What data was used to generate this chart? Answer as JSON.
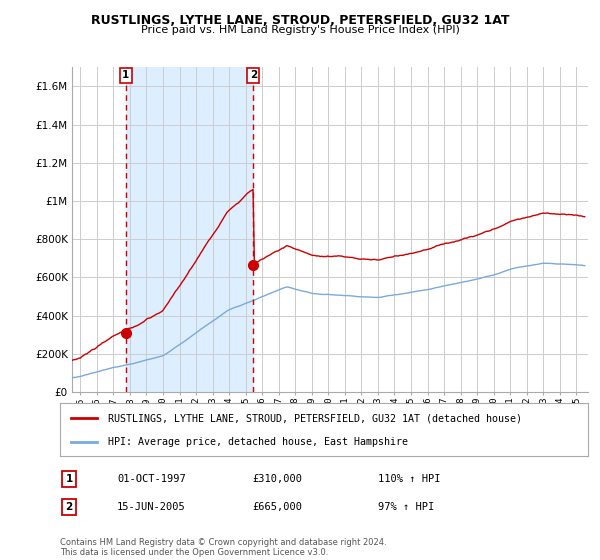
{
  "title": "RUSTLINGS, LYTHE LANE, STROUD, PETERSFIELD, GU32 1AT",
  "subtitle": "Price paid vs. HM Land Registry's House Price Index (HPI)",
  "legend_line1": "RUSTLINGS, LYTHE LANE, STROUD, PETERSFIELD, GU32 1AT (detached house)",
  "legend_line2": "HPI: Average price, detached house, East Hampshire",
  "sale1_label": "1",
  "sale1_date": "01-OCT-1997",
  "sale1_price": "£310,000",
  "sale1_hpi": "110% ↑ HPI",
  "sale2_label": "2",
  "sale2_date": "15-JUN-2005",
  "sale2_price": "£665,000",
  "sale2_hpi": "97% ↑ HPI",
  "footnote": "Contains HM Land Registry data © Crown copyright and database right 2024.\nThis data is licensed under the Open Government Licence v3.0.",
  "red_color": "#cc0000",
  "blue_color": "#7aaadd",
  "shade_color": "#ddeeff",
  "background_color": "#ffffff",
  "grid_color": "#cccccc",
  "ylim": [
    0,
    1700000
  ],
  "xlim_start": 1994.5,
  "xlim_end": 2025.7,
  "sale1_x": 1997.75,
  "sale1_y": 310000,
  "sale2_x": 2005.46,
  "sale2_y": 665000
}
